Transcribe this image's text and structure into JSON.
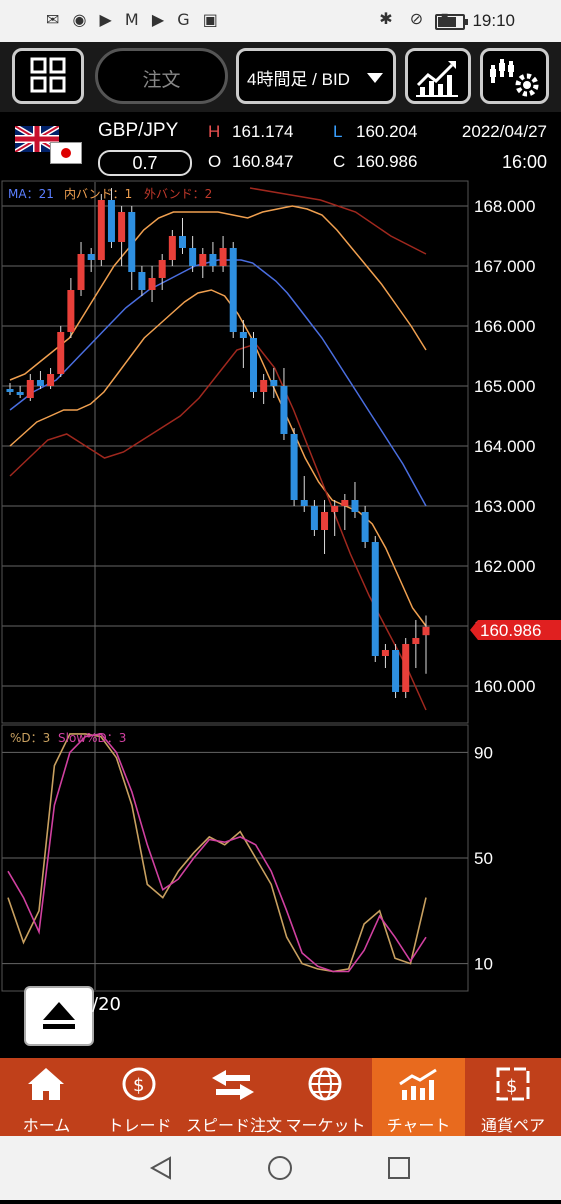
{
  "status": {
    "time": "19:10"
  },
  "toolbar": {
    "order_label": "注文",
    "timeframe_label": "4時間足 / BID"
  },
  "quote": {
    "pair": "GBP/JPY",
    "spread": "0.7",
    "high_label": "H",
    "high": "161.174",
    "low_label": "L",
    "low": "160.204",
    "open_label": "O",
    "open": "160.847",
    "close_label": "C",
    "close": "160.986",
    "date": "2022/04/27",
    "time": "16:00"
  },
  "chart": {
    "legend_ma": "MA：21",
    "legend_inner": "内バンド：1",
    "legend_outer": "外バンド：2",
    "price_ticks": [
      "168.000",
      "167.000",
      "166.000",
      "165.000",
      "164.000",
      "163.000",
      "162.000",
      "161.000",
      "160.000"
    ],
    "current_price": "160.986",
    "osc_legend_d": "%D：3",
    "osc_legend_slow": "Slow%D：3",
    "osc_ticks": [
      "90",
      "50",
      "10"
    ],
    "date_fragment": "/20"
  },
  "chart_data": {
    "type": "candlestick",
    "price_range": [
      159.4,
      168.4
    ],
    "candles": [
      [
        164.95,
        165.05,
        164.85,
        164.9
      ],
      [
        164.9,
        165.0,
        164.8,
        164.85
      ],
      [
        164.8,
        165.2,
        164.75,
        165.1
      ],
      [
        165.1,
        165.25,
        164.95,
        165.0
      ],
      [
        165.0,
        165.3,
        164.95,
        165.2
      ],
      [
        165.2,
        166.0,
        165.15,
        165.9
      ],
      [
        165.9,
        166.8,
        165.8,
        166.6
      ],
      [
        166.6,
        167.4,
        166.5,
        167.2
      ],
      [
        167.2,
        167.3,
        166.9,
        167.1
      ],
      [
        167.1,
        168.2,
        167.0,
        168.1
      ],
      [
        168.1,
        168.3,
        167.3,
        167.4
      ],
      [
        167.4,
        168.0,
        167.0,
        167.9
      ],
      [
        167.9,
        168.0,
        166.6,
        166.9
      ],
      [
        166.9,
        167.0,
        166.5,
        166.6
      ],
      [
        166.6,
        167.0,
        166.4,
        166.8
      ],
      [
        166.8,
        167.2,
        166.6,
        167.1
      ],
      [
        167.1,
        167.6,
        167.0,
        167.5
      ],
      [
        167.5,
        167.8,
        167.2,
        167.3
      ],
      [
        167.3,
        167.5,
        166.9,
        167.0
      ],
      [
        167.0,
        167.3,
        166.8,
        167.2
      ],
      [
        167.2,
        167.4,
        166.9,
        167.0
      ],
      [
        167.0,
        167.5,
        166.9,
        167.3
      ],
      [
        167.3,
        167.4,
        165.8,
        165.9
      ],
      [
        165.9,
        166.1,
        165.3,
        165.8
      ],
      [
        165.8,
        165.9,
        164.8,
        164.9
      ],
      [
        164.9,
        165.2,
        164.7,
        165.1
      ],
      [
        165.1,
        165.3,
        164.8,
        165.0
      ],
      [
        165.0,
        165.3,
        164.1,
        164.2
      ],
      [
        164.2,
        164.3,
        163.0,
        163.1
      ],
      [
        163.1,
        163.5,
        162.9,
        163.0
      ],
      [
        163.0,
        163.1,
        162.5,
        162.6
      ],
      [
        162.6,
        163.1,
        162.2,
        162.9
      ],
      [
        162.9,
        163.1,
        162.5,
        163.0
      ],
      [
        163.0,
        163.2,
        162.6,
        163.1
      ],
      [
        163.1,
        163.4,
        162.8,
        162.9
      ],
      [
        162.9,
        163.0,
        162.3,
        162.4
      ],
      [
        162.4,
        162.5,
        160.4,
        160.5
      ],
      [
        160.5,
        160.7,
        160.3,
        160.6
      ],
      [
        160.6,
        160.7,
        159.8,
        159.9
      ],
      [
        159.9,
        160.8,
        159.8,
        160.7
      ],
      [
        160.7,
        161.1,
        160.3,
        160.8
      ],
      [
        160.847,
        161.174,
        160.204,
        160.986
      ]
    ],
    "ma": [
      164.6,
      164.75,
      164.9,
      165.0,
      165.1,
      165.3,
      165.5,
      165.7,
      165.9,
      166.1,
      166.3,
      166.45,
      166.6,
      166.7,
      166.8,
      166.9,
      167.0,
      167.05,
      167.1,
      167.1,
      167.1,
      167.05,
      166.9,
      166.75,
      166.55,
      166.3,
      166.05,
      165.8,
      165.5,
      165.2,
      164.9,
      164.6,
      164.3,
      164.0,
      163.7,
      163.35,
      163.0
    ],
    "inner_upper": [
      165.1,
      165.2,
      165.4,
      165.6,
      165.8,
      166.2,
      166.6,
      167.0,
      167.3,
      167.6,
      167.8,
      167.9,
      167.9,
      167.9,
      167.9,
      167.85,
      167.8,
      167.9,
      167.95,
      168.0,
      167.95,
      167.85,
      167.6,
      167.3,
      167.0,
      166.7,
      166.35,
      166.0,
      165.6
    ],
    "inner_lower": [
      164.0,
      164.2,
      164.4,
      164.5,
      164.6,
      164.6,
      164.7,
      164.9,
      165.2,
      165.5,
      165.8,
      166.0,
      166.2,
      166.4,
      166.55,
      166.6,
      166.5,
      166.2,
      165.8,
      165.3,
      164.8,
      164.3,
      163.8,
      163.4,
      163.1,
      163.0,
      162.9,
      162.7,
      162.3,
      161.8,
      161.3,
      161.0
    ],
    "outer_upper": [
      168.3,
      168.2,
      168.1,
      167.9,
      167.5,
      167.2
    ],
    "outer_lower": [
      163.5,
      163.8,
      164.1,
      164.2,
      164.0,
      163.8,
      163.9,
      164.1,
      164.3,
      164.5,
      164.8,
      165.2,
      165.6,
      165.7,
      165.3,
      164.6,
      163.8,
      163.0,
      162.2,
      161.5,
      160.9,
      160.3,
      159.6
    ],
    "osc_range": [
      0,
      100
    ],
    "osc_d": [
      35,
      18,
      30,
      85,
      97,
      97,
      96,
      88,
      70,
      40,
      35,
      45,
      52,
      58,
      55,
      60,
      50,
      40,
      20,
      10,
      8,
      7,
      8,
      25,
      30,
      12,
      10,
      35
    ],
    "osc_slow": [
      45,
      35,
      22,
      70,
      90,
      96,
      97,
      90,
      75,
      55,
      38,
      42,
      50,
      57,
      56,
      58,
      55,
      45,
      30,
      14,
      9,
      7,
      7,
      15,
      28,
      20,
      11,
      20
    ]
  }
}
